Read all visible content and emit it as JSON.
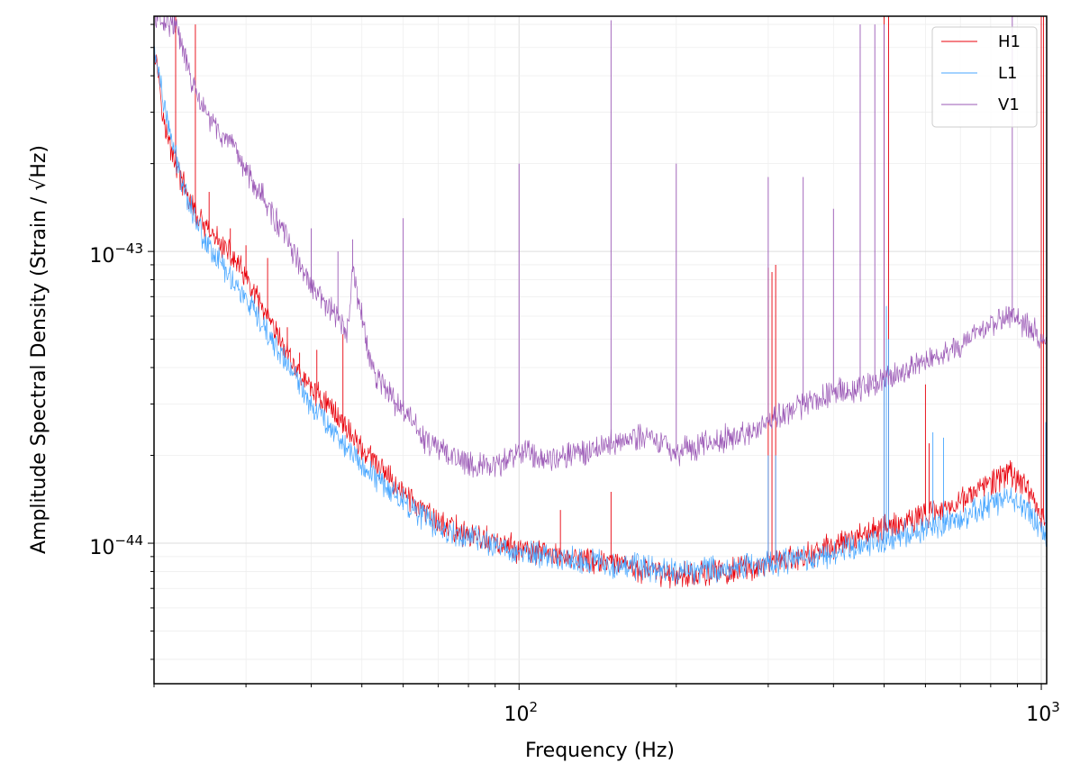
{
  "chart_data": {
    "type": "line",
    "title": "",
    "xlabel": "Frequency (Hz)",
    "ylabel": "Amplitude Spectral Density (Strain / √Hz)",
    "x_scale": "log",
    "y_scale": "log",
    "xlim": [
      20,
      1024
    ],
    "ylim": [
      3.3e-45,
      6.4e-43
    ],
    "x_ticks": [
      {
        "value": 100,
        "base": "10",
        "exp": "2"
      },
      {
        "value": 1000,
        "base": "10",
        "exp": "3"
      }
    ],
    "y_ticks": [
      {
        "value": 1e-44,
        "base": "10",
        "exp": "−44"
      },
      {
        "value": 1e-43,
        "base": "10",
        "exp": "−43"
      }
    ],
    "grid": true,
    "legend_position": "top-right",
    "series": [
      {
        "name": "H1",
        "color": "#e8000b",
        "points": [
          [
            20,
            5.2e-43
          ],
          [
            20.5,
            3.8e-43
          ],
          [
            21,
            2.6e-43
          ],
          [
            22,
            2e-43
          ],
          [
            23,
            1.6e-43
          ],
          [
            24,
            1.35e-43
          ],
          [
            25,
            1.2e-43
          ],
          [
            27,
            1.05e-43
          ],
          [
            29,
            9e-44
          ],
          [
            30,
            8e-44
          ],
          [
            32,
            6.5e-44
          ],
          [
            34,
            5.3e-44
          ],
          [
            36,
            4.5e-44
          ],
          [
            38,
            3.8e-44
          ],
          [
            40,
            3.4e-44
          ],
          [
            43,
            3e-44
          ],
          [
            46,
            2.6e-44
          ],
          [
            50,
            2.1e-44
          ],
          [
            55,
            1.75e-44
          ],
          [
            60,
            1.5e-44
          ],
          [
            65,
            1.3e-44
          ],
          [
            70,
            1.18e-44
          ],
          [
            80,
            1.07e-44
          ],
          [
            90,
            1e-44
          ],
          [
            100,
            9.5e-45
          ],
          [
            120,
            9e-45
          ],
          [
            150,
            8.5e-45
          ],
          [
            180,
            8e-45
          ],
          [
            200,
            7.8e-45
          ],
          [
            250,
            8e-45
          ],
          [
            300,
            8.5e-45
          ],
          [
            350,
            9e-45
          ],
          [
            400,
            9.8e-45
          ],
          [
            450,
            1.06e-44
          ],
          [
            500,
            1.13e-44
          ],
          [
            600,
            1.25e-44
          ],
          [
            700,
            1.4e-44
          ],
          [
            800,
            1.6e-44
          ],
          [
            870,
            1.75e-44
          ],
          [
            950,
            1.5e-44
          ],
          [
            1000,
            1.25e-44
          ],
          [
            1024,
            1.15e-44
          ]
        ],
        "lines": [
          [
            22,
            8e-43
          ],
          [
            24,
            6e-43
          ],
          [
            25.5,
            1.6e-43
          ],
          [
            28,
            1.2e-43
          ],
          [
            30,
            1.05e-43
          ],
          [
            33,
            9.5e-44
          ],
          [
            36,
            5.5e-44
          ],
          [
            38,
            4.5e-44
          ],
          [
            41,
            4.6e-44
          ],
          [
            46,
            5.2e-44
          ],
          [
            58,
            1.6e-44
          ],
          [
            120,
            1.3e-44
          ],
          [
            150,
            1.5e-44
          ],
          [
            300,
            8.8e-44
          ],
          [
            305,
            8.5e-44
          ],
          [
            310,
            9e-44
          ],
          [
            500,
            1e-42
          ],
          [
            510,
            1e-42
          ],
          [
            600,
            3.5e-44
          ],
          [
            610,
            2.2e-44
          ],
          [
            1000,
            1e-42
          ],
          [
            1010,
            8e-43
          ]
        ]
      },
      {
        "name": "L1",
        "color": "#47a6ff",
        "points": [
          [
            20,
            4.9e-43
          ],
          [
            20.5,
            4e-43
          ],
          [
            21,
            3e-43
          ],
          [
            22,
            2.1e-43
          ],
          [
            23,
            1.6e-43
          ],
          [
            24,
            1.3e-43
          ],
          [
            25,
            1.1e-43
          ],
          [
            27,
            9e-44
          ],
          [
            29,
            7.5e-44
          ],
          [
            30,
            6.8e-44
          ],
          [
            32,
            5.6e-44
          ],
          [
            34,
            4.8e-44
          ],
          [
            36,
            4.1e-44
          ],
          [
            38,
            3.5e-44
          ],
          [
            40,
            3e-44
          ],
          [
            43,
            2.6e-44
          ],
          [
            46,
            2.2e-44
          ],
          [
            50,
            1.85e-44
          ],
          [
            55,
            1.6e-44
          ],
          [
            60,
            1.4e-44
          ],
          [
            65,
            1.25e-44
          ],
          [
            70,
            1.13e-44
          ],
          [
            80,
            1.05e-44
          ],
          [
            90,
            9.8e-45
          ],
          [
            100,
            9.3e-45
          ],
          [
            120,
            8.9e-45
          ],
          [
            150,
            8.5e-45
          ],
          [
            180,
            8.2e-45
          ],
          [
            200,
            8e-45
          ],
          [
            250,
            8.2e-45
          ],
          [
            300,
            8.5e-45
          ],
          [
            350,
            8.8e-45
          ],
          [
            400,
            9.3e-45
          ],
          [
            450,
            9.8e-45
          ],
          [
            500,
            1.03e-44
          ],
          [
            600,
            1.12e-44
          ],
          [
            700,
            1.22e-44
          ],
          [
            800,
            1.35e-44
          ],
          [
            870,
            1.45e-44
          ],
          [
            950,
            1.3e-44
          ],
          [
            1000,
            1.12e-44
          ],
          [
            1024,
            1.02e-44
          ]
        ],
        "lines": [
          [
            60,
            1.3e-44
          ],
          [
            300,
            2e-44
          ],
          [
            310,
            2e-44
          ],
          [
            500,
            4e-44
          ],
          [
            505,
            6.5e-44
          ],
          [
            510,
            5e-44
          ],
          [
            620,
            2.4e-44
          ],
          [
            650,
            2.3e-44
          ],
          [
            1020,
            2.6e-44
          ]
        ]
      },
      {
        "name": "V1",
        "color": "#9b59b6",
        "points": [
          [
            20,
            6.4e-43
          ],
          [
            22,
            6e-43
          ],
          [
            23,
            4.5e-43
          ],
          [
            24,
            3.5e-43
          ],
          [
            25,
            3e-43
          ],
          [
            27,
            2.5e-43
          ],
          [
            29,
            2.1e-43
          ],
          [
            30,
            1.9e-43
          ],
          [
            32,
            1.6e-43
          ],
          [
            34,
            1.3e-43
          ],
          [
            36,
            1.1e-43
          ],
          [
            38,
            9e-44
          ],
          [
            40,
            7.5e-44
          ],
          [
            43,
            6.5e-44
          ],
          [
            45,
            5.8e-44
          ],
          [
            47,
            5.3e-44
          ],
          [
            48,
            8.5e-44
          ],
          [
            50,
            6e-44
          ],
          [
            52,
            4e-44
          ],
          [
            55,
            3.5e-44
          ],
          [
            58,
            3e-44
          ],
          [
            62,
            2.7e-44
          ],
          [
            65,
            2.3e-44
          ],
          [
            70,
            2.1e-44
          ],
          [
            80,
            1.9e-44
          ],
          [
            90,
            1.8e-44
          ],
          [
            100,
            2.1e-44
          ],
          [
            110,
            1.95e-44
          ],
          [
            120,
            2e-44
          ],
          [
            140,
            2.1e-44
          ],
          [
            160,
            2.3e-44
          ],
          [
            180,
            2.3e-44
          ],
          [
            200,
            2.05e-44
          ],
          [
            220,
            2.15e-44
          ],
          [
            250,
            2.3e-44
          ],
          [
            280,
            2.4e-44
          ],
          [
            300,
            2.6e-44
          ],
          [
            350,
            3e-44
          ],
          [
            400,
            3.3e-44
          ],
          [
            450,
            3.4e-44
          ],
          [
            500,
            3.7e-44
          ],
          [
            600,
            4.2e-44
          ],
          [
            700,
            4.8e-44
          ],
          [
            800,
            5.6e-44
          ],
          [
            870,
            6e-44
          ],
          [
            950,
            5.5e-44
          ],
          [
            1000,
            5e-44
          ],
          [
            1024,
            4.7e-44
          ]
        ],
        "lines": [
          [
            30,
            2e-43
          ],
          [
            40,
            1.2e-43
          ],
          [
            45,
            1e-43
          ],
          [
            48,
            1.1e-43
          ],
          [
            60,
            1.3e-43
          ],
          [
            100,
            2e-43
          ],
          [
            150,
            6.2e-43
          ],
          [
            200,
            2e-43
          ],
          [
            300,
            1.8e-43
          ],
          [
            350,
            1.8e-43
          ],
          [
            400,
            1.4e-43
          ],
          [
            450,
            6e-43
          ],
          [
            480,
            6e-43
          ],
          [
            500,
            6e-43
          ],
          [
            880,
            6.4e-43
          ]
        ]
      }
    ]
  }
}
